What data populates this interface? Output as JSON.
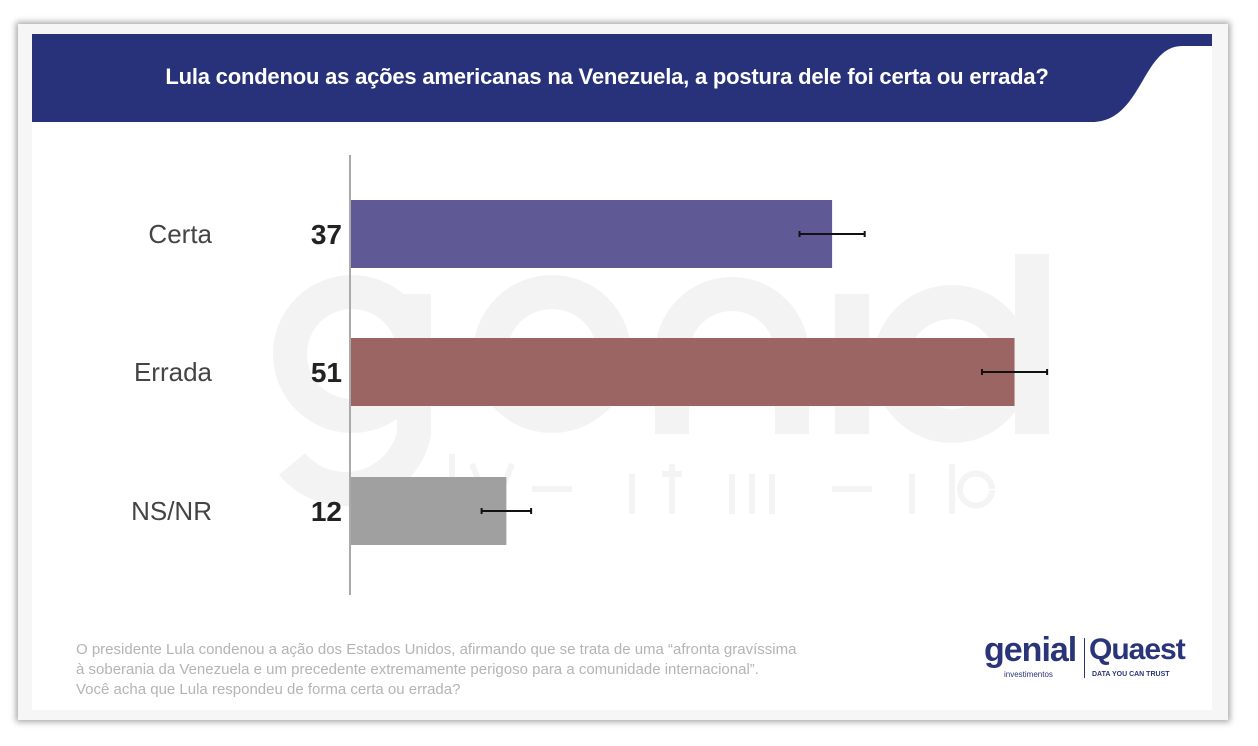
{
  "title": "Lula condenou as ações americanas na Venezuela, a postura dele foi certa ou errada?",
  "watermark": {
    "main": "genial",
    "sub": "investimentos"
  },
  "footer": [
    "O presidente Lula condenou a ação dos Estados Unidos, afirmando que se trata de uma “afronta gravíssima",
    "à soberania da Venezuela e um precedente extremamente perigoso para a comunidade internacional”.",
    "Você acha que Lula respondeu de forma certa ou errada?"
  ],
  "logos": {
    "genial": "genial",
    "genial_sub": "investimentos",
    "quaest": "Quaest",
    "quaest_sub": "DATA YOU CAN TRUST"
  },
  "colors": {
    "header": "#27327a",
    "certa": "#5f5a96",
    "errada": "#9a6563",
    "nsnr": "#a0a0a0"
  },
  "chart_data": {
    "type": "bar",
    "orientation": "horizontal",
    "categories": [
      "Certa",
      "Errada",
      "NS/NR"
    ],
    "values": [
      37,
      51,
      12
    ],
    "error": [
      2.5,
      2.5,
      1.9
    ],
    "xlim": [
      0,
      80
    ],
    "title": "Lula condenou as ações americanas na Venezuela, a postura dele foi certa ou errada?"
  }
}
